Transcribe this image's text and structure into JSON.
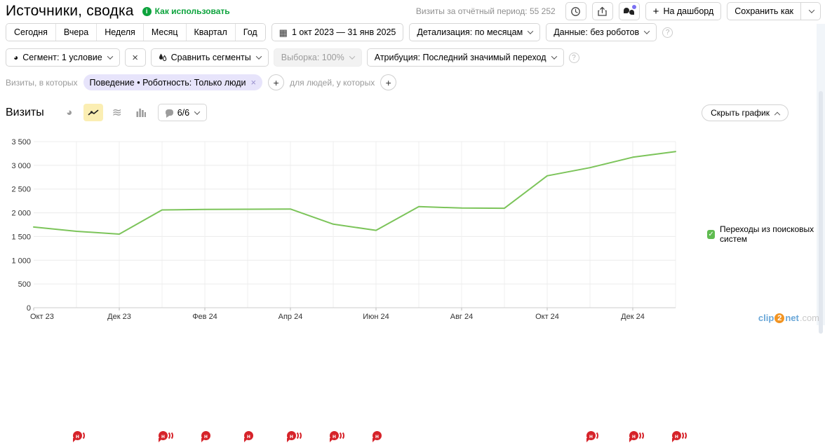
{
  "header": {
    "title": "Источники, сводка",
    "help_link": "Как использовать",
    "visits_total": "Визиты за отчётный период: 55 252",
    "dashboard_button": "На дашборд",
    "save_as_button": "Сохранить как"
  },
  "period_bar": {
    "presets": [
      "Сегодня",
      "Вчера",
      "Неделя",
      "Месяц",
      "Квартал",
      "Год"
    ],
    "date_range": "1 окт 2023 — 31 янв 2025",
    "detalization": "Детализация: по месяцам",
    "data_mode": "Данные: без роботов"
  },
  "segment_bar": {
    "segment": "Сегмент: 1 условие",
    "compare": "Сравнить сегменты",
    "sampling": "Выборка: 100%",
    "attribution": "Атрибуция: Последний значимый переход"
  },
  "filter_bar": {
    "visits_label": "Визиты, в которых",
    "chip": "Поведение • Роботность: Только люди",
    "people_label": "для людей, у которых"
  },
  "chart_header": {
    "metric": "Визиты",
    "notes_count": "6/6",
    "hide_chart": "Скрыть график"
  },
  "legend": {
    "label": "Переходы из поисковых систем",
    "checked": true,
    "color": "#5fbb50"
  },
  "icons": {
    "calendar_grid": "▦",
    "pie": "◕",
    "triple_wave": "≋",
    "check": "✓",
    "close": "×",
    "plus": "+",
    "question": "?",
    "note_letter": "н"
  },
  "watermark": {
    "p1": "clip",
    "p2": "2",
    "p3": "net",
    "p4": ".com"
  },
  "chart_data": {
    "type": "line",
    "title": "Визиты",
    "series": [
      {
        "name": "Переходы из поисковых систем",
        "values": [
          1700,
          1610,
          1550,
          2060,
          2070,
          2075,
          2080,
          1760,
          1630,
          2130,
          2100,
          2095,
          2780,
          2950,
          3170,
          3290
        ]
      }
    ],
    "categories": [
      "Окт 23",
      "Ноя 23",
      "Дек 23",
      "Янв 24",
      "Фев 24",
      "Мар 24",
      "Апр 24",
      "Май 24",
      "Июн 24",
      "Июл 24",
      "Авг 24",
      "Сен 24",
      "Окт 24",
      "Ноя 24",
      "Дек 24",
      "Янв 25"
    ],
    "xticks": [
      {
        "i": 0,
        "label": "Окт 23"
      },
      {
        "i": 2,
        "label": "Дек 23"
      },
      {
        "i": 4,
        "label": "Фев 24"
      },
      {
        "i": 6,
        "label": "Апр 24"
      },
      {
        "i": 8,
        "label": "Июн 24"
      },
      {
        "i": 10,
        "label": "Авг 24"
      },
      {
        "i": 12,
        "label": "Окт 24"
      },
      {
        "i": 14,
        "label": "Дек 24"
      }
    ],
    "ytick_values": [
      0,
      500,
      1000,
      1500,
      2000,
      2500,
      3000,
      3500
    ],
    "ytick_labels": [
      "0",
      "500",
      "1 000",
      "1 500",
      "2 000",
      "2 500",
      "3 000",
      "3 500"
    ],
    "ylim": [
      0,
      3500
    ],
    "grid": true,
    "legend_position": "right",
    "line_color": "#7cc45a",
    "note_markers": [
      {
        "i": 1,
        "arcs": 1
      },
      {
        "i": 3,
        "arcs": 2
      },
      {
        "i": 4,
        "arcs": 0
      },
      {
        "i": 5,
        "arcs": 0
      },
      {
        "i": 6,
        "arcs": 2
      },
      {
        "i": 7,
        "arcs": 2
      },
      {
        "i": 8,
        "arcs": 0
      },
      {
        "i": 13,
        "arcs": 1
      },
      {
        "i": 14,
        "arcs": 2
      },
      {
        "i": 15,
        "arcs": 2
      }
    ],
    "marker_color": "#d6232a"
  }
}
